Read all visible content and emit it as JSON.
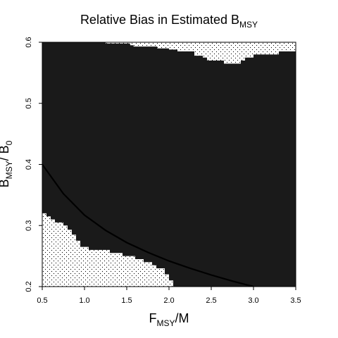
{
  "chart_data": {
    "type": "heatmap",
    "title": {
      "main": "Relative Bias in Estimated B",
      "sub": "MSY"
    },
    "xlabel": {
      "main": "F",
      "sub": "MSY",
      "suffix": "/M"
    },
    "ylabel": {
      "main": "B",
      "sub": "MSY",
      "mid": "/ B",
      "sub2": "0"
    },
    "xlim": [
      0.5,
      3.5
    ],
    "ylim": [
      0.2,
      0.6
    ],
    "x_ticks": [
      0.5,
      1.0,
      1.5,
      2.0,
      2.5,
      3.0,
      3.5
    ],
    "x_tick_labels": [
      "0.5",
      "1.0",
      "1.5",
      "2.0",
      "2.5",
      "3.0",
      "3.5"
    ],
    "y_ticks": [
      0.2,
      0.3,
      0.4,
      0.5,
      0.6
    ],
    "y_tick_labels": [
      "0.2",
      "0.3",
      "0.4",
      "0.5",
      "0.6"
    ],
    "grid": false,
    "colors": {
      "dense": "#1a1a1a",
      "dotted_bg": "#ffffff",
      "dot": "#000000",
      "axis": "#000000"
    },
    "regions": {
      "top_dotted_boundary": [
        [
          0.5,
          0.6
        ],
        [
          1.25,
          0.6
        ],
        [
          1.25,
          0.598
        ],
        [
          1.54,
          0.598
        ],
        [
          1.54,
          0.595
        ],
        [
          1.58,
          0.595
        ],
        [
          1.58,
          0.593
        ],
        [
          1.86,
          0.593
        ],
        [
          1.86,
          0.59
        ],
        [
          2.0,
          0.59
        ],
        [
          2.0,
          0.588
        ],
        [
          2.1,
          0.588
        ],
        [
          2.1,
          0.585
        ],
        [
          2.3,
          0.585
        ],
        [
          2.3,
          0.578
        ],
        [
          2.4,
          0.578
        ],
        [
          2.4,
          0.575
        ],
        [
          2.45,
          0.575
        ],
        [
          2.45,
          0.57
        ],
        [
          2.65,
          0.57
        ],
        [
          2.65,
          0.565
        ],
        [
          2.85,
          0.565
        ],
        [
          2.85,
          0.57
        ],
        [
          2.9,
          0.57
        ],
        [
          2.9,
          0.575
        ],
        [
          3.0,
          0.575
        ],
        [
          3.0,
          0.58
        ],
        [
          3.3,
          0.58
        ],
        [
          3.3,
          0.585
        ],
        [
          3.5,
          0.585
        ],
        [
          3.5,
          0.6
        ]
      ],
      "bottom_dotted_boundary": [
        [
          0.5,
          0.32
        ],
        [
          0.55,
          0.32
        ],
        [
          0.55,
          0.315
        ],
        [
          0.6,
          0.315
        ],
        [
          0.6,
          0.31
        ],
        [
          0.65,
          0.31
        ],
        [
          0.65,
          0.305
        ],
        [
          0.75,
          0.305
        ],
        [
          0.75,
          0.3
        ],
        [
          0.8,
          0.3
        ],
        [
          0.8,
          0.293
        ],
        [
          0.85,
          0.293
        ],
        [
          0.85,
          0.285
        ],
        [
          0.9,
          0.285
        ],
        [
          0.9,
          0.275
        ],
        [
          0.95,
          0.275
        ],
        [
          0.95,
          0.265
        ],
        [
          1.05,
          0.265
        ],
        [
          1.05,
          0.26
        ],
        [
          1.3,
          0.26
        ],
        [
          1.3,
          0.255
        ],
        [
          1.45,
          0.255
        ],
        [
          1.45,
          0.25
        ],
        [
          1.6,
          0.25
        ],
        [
          1.6,
          0.245
        ],
        [
          1.7,
          0.245
        ],
        [
          1.7,
          0.24
        ],
        [
          1.8,
          0.24
        ],
        [
          1.8,
          0.235
        ],
        [
          1.85,
          0.235
        ],
        [
          1.85,
          0.23
        ],
        [
          1.95,
          0.23
        ],
        [
          1.95,
          0.22
        ],
        [
          2.0,
          0.22
        ],
        [
          2.0,
          0.21
        ],
        [
          2.05,
          0.21
        ],
        [
          2.05,
          0.2
        ],
        [
          0.5,
          0.2
        ]
      ]
    },
    "series": [
      {
        "type": "line",
        "x": [
          0.5,
          0.75,
          1.0,
          1.25,
          1.5,
          1.75,
          2.0,
          2.25,
          2.5,
          2.75,
          3.0
        ],
        "y": [
          0.4,
          0.352,
          0.317,
          0.292,
          0.272,
          0.256,
          0.242,
          0.23,
          0.219,
          0.209,
          0.2
        ],
        "color": "#000000"
      }
    ]
  }
}
